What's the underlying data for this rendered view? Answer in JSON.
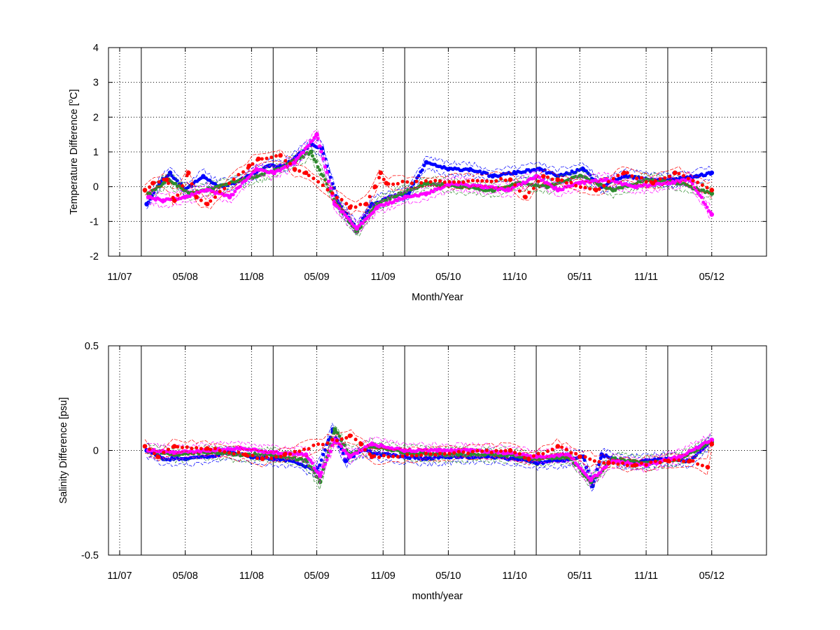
{
  "chart_data": [
    {
      "type": "scatter",
      "title": "",
      "xlabel": "Month/Year",
      "ylabel_parts": [
        "Temperature Difference [",
        "o",
        "C]"
      ],
      "ylim": [
        -2,
        4
      ],
      "yticks": [
        -2,
        -1,
        0,
        1,
        2,
        3,
        4
      ],
      "ytick_labels": [
        "-2",
        "-1",
        "0",
        "1",
        "2",
        "3",
        "4"
      ],
      "xlim": [
        "2007-10-01",
        "2012-09-30"
      ],
      "xticks": [
        "2007-11-01",
        "2008-05-01",
        "2008-11-01",
        "2009-05-01",
        "2009-11-01",
        "2010-05-01",
        "2010-11-01",
        "2011-05-01",
        "2011-11-01",
        "2012-05-01"
      ],
      "xtick_labels": [
        "11/07",
        "05/08",
        "11/08",
        "05/09",
        "11/09",
        "05/10",
        "11/10",
        "05/11",
        "11/11",
        "05/12"
      ],
      "vlines": [
        "2007-12-31",
        "2008-12-31",
        "2009-12-31",
        "2010-12-31",
        "2011-12-31"
      ],
      "grid": "dotted",
      "series": [
        {
          "color": "#0000ff",
          "x": [
            "2008-01-15",
            "2008-02-20",
            "2008-03-20",
            "2008-05-01",
            "2008-06-20",
            "2008-08-01",
            "2008-09-15",
            "2008-11-10",
            "2008-12-20",
            "2009-02-01",
            "2009-04-15",
            "2009-05-15",
            "2009-07-01",
            "2009-08-20",
            "2009-10-01",
            "2009-11-20",
            "2010-01-10",
            "2010-03-01",
            "2010-05-01",
            "2010-07-01",
            "2010-09-01",
            "2010-11-01",
            "2011-01-10",
            "2011-03-01",
            "2011-05-10",
            "2011-07-01",
            "2011-09-01",
            "2011-11-15",
            "2012-01-15",
            "2012-03-20",
            "2012-05-01"
          ],
          "y": [
            -0.5,
            0.1,
            0.4,
            -0.1,
            0.3,
            0.0,
            0.1,
            0.4,
            0.6,
            0.6,
            1.2,
            1.1,
            -0.5,
            -1.2,
            -0.5,
            -0.3,
            -0.2,
            0.7,
            0.5,
            0.5,
            0.3,
            0.4,
            0.5,
            0.3,
            0.5,
            0.0,
            0.3,
            0.2,
            0.2,
            0.3,
            0.4
          ]
        },
        {
          "color": "#2e8b2e",
          "x": [
            "2008-01-20",
            "2008-03-15",
            "2008-05-15",
            "2008-08-01",
            "2008-11-15",
            "2009-01-15",
            "2009-04-15",
            "2009-06-20",
            "2009-08-20",
            "2009-10-15",
            "2009-12-20",
            "2010-03-01",
            "2010-06-01",
            "2010-09-01",
            "2010-11-15",
            "2011-02-01",
            "2011-05-01",
            "2011-08-01",
            "2011-11-01",
            "2012-02-01",
            "2012-05-01"
          ],
          "y": [
            -0.2,
            0.2,
            -0.2,
            0.0,
            0.3,
            0.5,
            1.0,
            -0.4,
            -1.3,
            -0.5,
            -0.2,
            0.1,
            0.0,
            -0.1,
            0.1,
            0.0,
            0.3,
            -0.1,
            0.2,
            0.1,
            -0.2
          ]
        },
        {
          "color": "#ff00ff",
          "x": [
            "2008-01-20",
            "2008-03-01",
            "2008-05-01",
            "2008-07-01",
            "2008-09-01",
            "2008-11-15",
            "2009-01-01",
            "2009-03-01",
            "2009-05-01",
            "2009-06-20",
            "2009-08-20",
            "2009-10-15",
            "2010-01-01",
            "2010-03-01",
            "2010-05-15",
            "2010-08-01",
            "2010-10-15",
            "2011-01-01",
            "2011-03-01",
            "2011-05-01",
            "2011-07-15",
            "2011-10-01",
            "2012-01-01",
            "2012-03-01",
            "2012-05-01"
          ],
          "y": [
            -0.3,
            -0.4,
            -0.3,
            -0.1,
            -0.3,
            0.5,
            0.4,
            0.7,
            1.5,
            -0.5,
            -1.2,
            -0.6,
            -0.3,
            -0.2,
            0.1,
            0.0,
            -0.1,
            0.3,
            -0.1,
            0.1,
            0.2,
            0.0,
            0.1,
            0.2,
            -0.8
          ]
        },
        {
          "color": "#ff0000",
          "x": [
            "2008-01-10",
            "2008-02-01",
            "2008-03-10",
            "2008-04-01",
            "2008-05-10",
            "2008-06-01",
            "2008-07-01",
            "2008-10-25",
            "2008-11-20",
            "2009-01-20",
            "2009-03-01",
            "2009-04-01",
            "2009-08-01",
            "2009-09-15",
            "2009-10-10",
            "2009-10-25",
            "2009-11-10",
            "2010-10-20",
            "2010-12-01",
            "2011-01-20",
            "2011-03-01",
            "2011-06-15",
            "2011-09-01",
            "2011-11-20",
            "2012-01-20",
            "2012-05-01"
          ],
          "y": [
            -0.1,
            0.1,
            0.2,
            -0.4,
            0.4,
            -0.3,
            -0.5,
            0.6,
            0.8,
            0.9,
            0.5,
            0.4,
            -0.6,
            -0.5,
            0.0,
            0.4,
            0.1,
            0.2,
            -0.3,
            0.3,
            0.2,
            -0.1,
            0.4,
            0.1,
            0.4,
            -0.1
          ]
        }
      ]
    },
    {
      "type": "scatter",
      "title": "",
      "xlabel": "month/year",
      "ylabel": "Salinity Difference [psu]",
      "ylim": [
        -0.5,
        0.5
      ],
      "yticks": [
        -0.5,
        0,
        0.5
      ],
      "ytick_labels": [
        "-0.5",
        "0",
        "0.5"
      ],
      "xlim": [
        "2007-10-01",
        "2012-09-30"
      ],
      "xticks": [
        "2007-11-01",
        "2008-05-01",
        "2008-11-01",
        "2009-05-01",
        "2009-11-01",
        "2010-05-01",
        "2010-11-01",
        "2011-05-01",
        "2011-11-01",
        "2012-05-01"
      ],
      "xtick_labels": [
        "11/07",
        "05/08",
        "11/08",
        "05/09",
        "11/09",
        "05/10",
        "11/10",
        "05/11",
        "11/11",
        "05/12"
      ],
      "vlines": [
        "2007-12-31",
        "2008-12-31",
        "2009-12-31",
        "2010-12-31",
        "2011-12-31"
      ],
      "grid": "dotted",
      "series": [
        {
          "color": "#0000ff",
          "x": [
            "2008-01-15",
            "2008-03-01",
            "2008-05-01",
            "2008-07-01",
            "2008-09-01",
            "2008-11-01",
            "2009-01-01",
            "2009-03-01",
            "2009-05-01",
            "2009-06-15",
            "2009-07-20",
            "2009-09-01",
            "2009-11-01",
            "2010-01-01",
            "2010-03-01",
            "2010-05-01",
            "2010-07-01",
            "2010-09-01",
            "2010-11-01",
            "2011-01-01",
            "2011-03-01",
            "2011-05-10",
            "2011-06-05",
            "2011-07-01",
            "2011-09-01",
            "2011-11-01",
            "2012-01-01",
            "2012-03-01",
            "2012-05-01"
          ],
          "y": [
            0.0,
            -0.04,
            -0.04,
            -0.03,
            -0.01,
            -0.03,
            -0.04,
            -0.05,
            -0.1,
            0.1,
            -0.05,
            0.0,
            -0.02,
            -0.03,
            -0.04,
            -0.03,
            -0.03,
            -0.03,
            -0.04,
            -0.06,
            -0.05,
            -0.03,
            -0.17,
            -0.02,
            -0.06,
            -0.05,
            -0.04,
            -0.05,
            0.05
          ]
        },
        {
          "color": "#2e8b2e",
          "x": [
            "2008-01-20",
            "2008-04-01",
            "2008-07-01",
            "2008-10-01",
            "2009-01-01",
            "2009-04-01",
            "2009-05-10",
            "2009-06-20",
            "2009-08-01",
            "2009-10-01",
            "2010-01-01",
            "2010-04-01",
            "2010-07-01",
            "2010-10-01",
            "2011-01-01",
            "2011-04-01",
            "2011-06-01",
            "2011-08-01",
            "2011-11-01",
            "2012-02-01",
            "2012-05-01"
          ],
          "y": [
            0.0,
            -0.02,
            -0.01,
            -0.02,
            -0.02,
            -0.05,
            -0.15,
            0.1,
            -0.02,
            0.02,
            -0.01,
            -0.02,
            -0.02,
            -0.02,
            -0.04,
            -0.03,
            -0.15,
            -0.04,
            -0.06,
            -0.04,
            0.04
          ]
        },
        {
          "color": "#ff00ff",
          "x": [
            "2008-01-20",
            "2008-04-01",
            "2008-07-01",
            "2008-10-01",
            "2009-01-01",
            "2009-04-01",
            "2009-05-10",
            "2009-06-20",
            "2009-08-01",
            "2009-10-01",
            "2010-01-01",
            "2010-04-01",
            "2010-07-01",
            "2010-10-01",
            "2011-01-01",
            "2011-04-01",
            "2011-06-01",
            "2011-08-01",
            "2011-11-01",
            "2012-02-01",
            "2012-05-01"
          ],
          "y": [
            0.0,
            -0.01,
            0.0,
            0.01,
            -0.01,
            -0.02,
            -0.12,
            0.05,
            -0.03,
            0.03,
            0.0,
            0.0,
            0.0,
            -0.01,
            -0.03,
            -0.02,
            -0.14,
            -0.05,
            -0.07,
            -0.03,
            0.05
          ]
        },
        {
          "color": "#ff0000",
          "x": [
            "2008-01-10",
            "2008-02-15",
            "2008-04-01",
            "2008-07-01",
            "2008-10-15",
            "2008-12-01",
            "2009-02-01",
            "2009-08-01",
            "2009-09-01",
            "2009-10-01",
            "2010-10-20",
            "2010-12-10",
            "2011-03-01",
            "2011-05-01",
            "2011-07-20",
            "2011-10-01",
            "2012-01-01",
            "2012-03-01",
            "2012-04-20",
            "2012-05-01"
          ],
          "y": [
            0.02,
            -0.03,
            0.02,
            0.01,
            -0.02,
            -0.04,
            -0.02,
            0.07,
            0.03,
            -0.03,
            0.0,
            -0.04,
            0.02,
            -0.03,
            -0.06,
            -0.07,
            -0.05,
            -0.05,
            -0.08,
            0.03
          ]
        }
      ]
    }
  ]
}
